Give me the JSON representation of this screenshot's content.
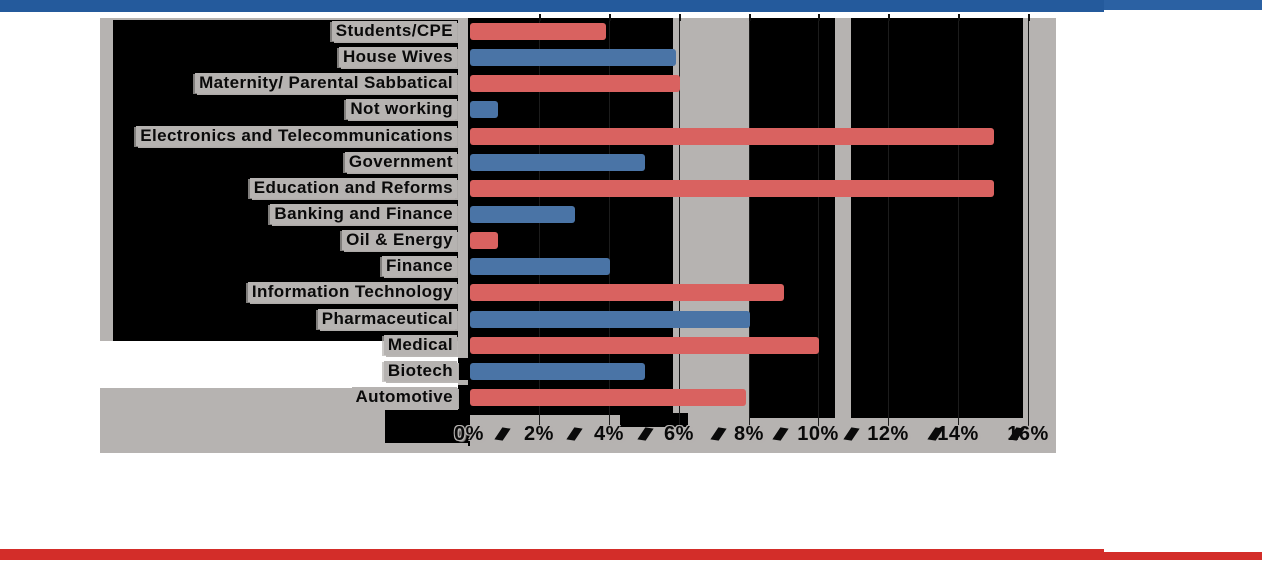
{
  "page": {
    "background": "#ffffff",
    "top_accent_bar": {
      "color_left": "#245a9c",
      "color_right": "#2b61a3"
    },
    "bottom_accent_bar": {
      "color": "#d32d29"
    }
  },
  "chart_data": {
    "type": "bar",
    "orientation": "horizontal",
    "title": "",
    "xlabel": "",
    "ylabel": "",
    "grid": true,
    "x_axis_ticks": [
      "0%",
      "2%",
      "4%",
      "6%",
      "8%",
      "10%",
      "12%",
      "14%",
      "16%"
    ],
    "x_range_percent": [
      0,
      16
    ],
    "categories": [
      "Students/CPE",
      "House Wives",
      "Maternity/ Parental Sabbatical",
      "Not working",
      "Electronics and Telecommunications",
      "Government",
      "Education and Reforms",
      "Banking and Finance",
      "Oil & Energy",
      "Finance",
      "Information Technology",
      "Pharmaceutical",
      "Medical",
      "Biotech",
      "Automotive"
    ],
    "values": [
      3.9,
      5.9,
      6.0,
      0.8,
      15.0,
      5.0,
      15.0,
      3.0,
      0.8,
      4.0,
      9.0,
      8.0,
      10.0,
      5.0,
      7.9
    ],
    "bar_color_pattern": "alternating",
    "bar_colors": {
      "red": "#d96260",
      "blue": "#4a74a6"
    },
    "plot_background_colors": {
      "gray": "#b6b3b1",
      "black_patches": "#000000"
    },
    "legend": "none"
  }
}
